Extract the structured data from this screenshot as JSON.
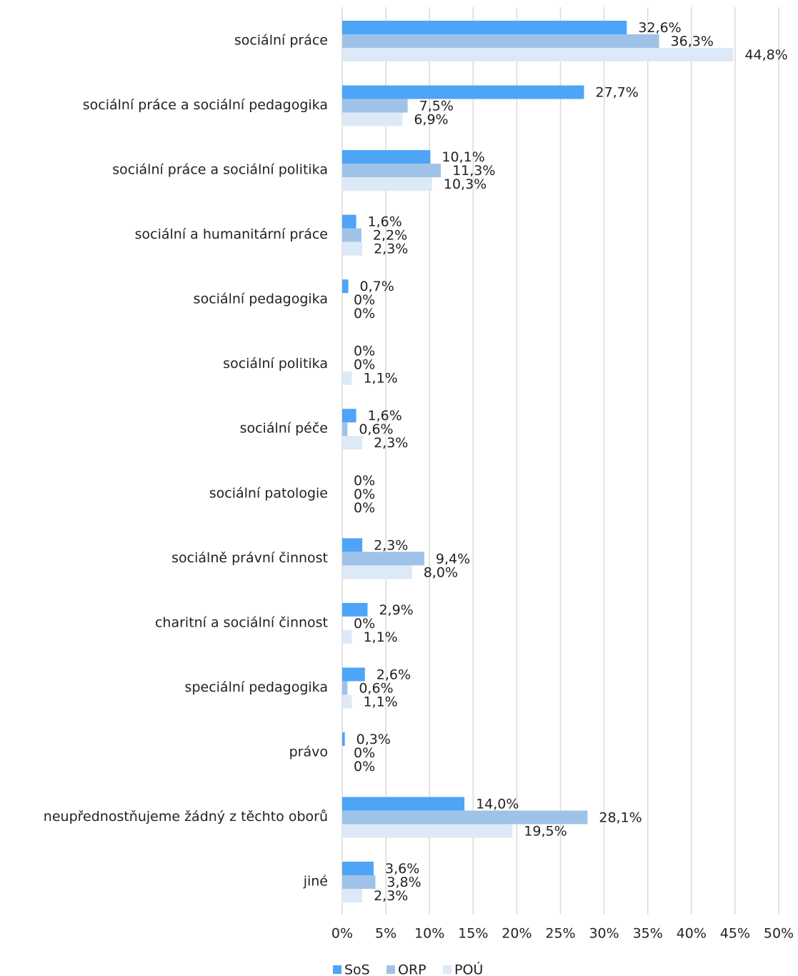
{
  "chart_data": {
    "type": "bar",
    "orientation": "horizontal",
    "grid": true,
    "legend": "bottom",
    "categories": [
      "sociální práce",
      "sociální práce a sociální pedagogika",
      "sociální práce a sociální politika",
      "sociální a humanitární práce",
      "sociální pedagogika",
      "sociální politika",
      "sociální péče",
      "sociální patologie",
      "sociálně právní činnost",
      "charitní a sociální činnost",
      "speciální pedagogika",
      "právo",
      "neupřednostňujeme žádný z těchto oborů",
      "jiné"
    ],
    "series": [
      {
        "name": "SoS",
        "color": "#4ea4f7",
        "values": [
          32.6,
          27.7,
          10.1,
          1.6,
          0.7,
          0,
          1.6,
          0,
          2.3,
          2.9,
          2.6,
          0.3,
          14.0,
          3.6
        ],
        "value_labels": [
          "32,6%",
          "27,7%",
          "10,1%",
          "1,6%",
          "0,7%",
          "0%",
          "1,6%",
          "0%",
          "2,3%",
          "2,9%",
          "2,6%",
          "0,3%",
          "14,0%",
          "3,6%"
        ]
      },
      {
        "name": "ORP",
        "color": "#9fc3e8",
        "values": [
          36.3,
          7.5,
          11.3,
          2.2,
          0,
          0,
          0.6,
          0,
          9.4,
          0,
          0.6,
          0,
          28.1,
          3.8
        ],
        "value_labels": [
          "36,3%",
          "7,5%",
          "11,3%",
          "2,2%",
          "0%",
          "0%",
          "0,6%",
          "0%",
          "9,4%",
          "0%",
          "0,6%",
          "0%",
          "28,1%",
          "3,8%"
        ]
      },
      {
        "name": "POÚ",
        "color": "#dde9f6",
        "values": [
          44.8,
          6.9,
          10.3,
          2.3,
          0,
          1.1,
          2.3,
          0,
          8.0,
          1.1,
          1.1,
          0,
          19.5,
          2.3
        ],
        "value_labels": [
          "44,8%",
          "6,9%",
          "10,3%",
          "2,3%",
          "0%",
          "1,1%",
          "2,3%",
          "0%",
          "8,0%",
          "1,1%",
          "1,1%",
          "0%",
          "19,5%",
          "2,3%"
        ]
      }
    ],
    "xlim": [
      0,
      50
    ],
    "xticks": [
      {
        "value": 0,
        "label": "0%"
      },
      {
        "value": 5,
        "label": "5%"
      },
      {
        "value": 10,
        "label": "10%"
      },
      {
        "value": 15,
        "label": "15%"
      },
      {
        "value": 20,
        "label": "20%"
      },
      {
        "value": 25,
        "label": "25%"
      },
      {
        "value": 30,
        "label": "30%"
      },
      {
        "value": 35,
        "label": "35%"
      },
      {
        "value": 40,
        "label": "40%"
      },
      {
        "value": 45,
        "label": "45%"
      },
      {
        "value": 50,
        "label": "50%"
      }
    ]
  }
}
